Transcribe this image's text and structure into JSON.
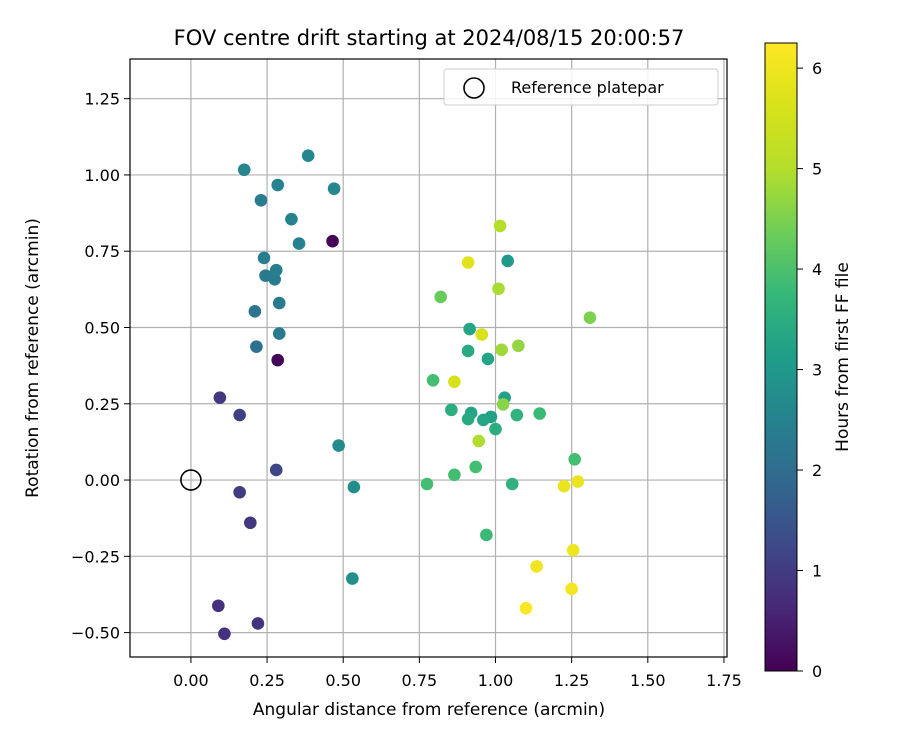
{
  "chart_data": {
    "type": "scatter",
    "title": "FOV centre drift starting at 2024/08/15 20:00:57",
    "xlabel": "Angular distance from reference (arcmin)",
    "ylabel": "Rotation from reference (arcmin)",
    "colorbar_label": "Hours from first FF file",
    "xlim": [
      -0.2,
      1.76
    ],
    "ylim": [
      -0.58,
      1.38
    ],
    "clim": [
      0,
      6.25
    ],
    "colormap": "viridis",
    "xticks": [
      "0.00",
      "0.25",
      "0.50",
      "0.75",
      "1.00",
      "1.25",
      "1.50",
      "1.75"
    ],
    "yticks": [
      "−0.50",
      "−0.25",
      "0.00",
      "0.25",
      "0.50",
      "0.75",
      "1.00",
      "1.25"
    ],
    "cticks": [
      "0",
      "1",
      "2",
      "3",
      "4",
      "5",
      "6"
    ],
    "grid": true,
    "legend": {
      "placement": "top-right",
      "entries": [
        "Reference platepar"
      ]
    },
    "reference_point": {
      "x": 0.0,
      "y": 0.0
    },
    "points": [
      {
        "x": 0.465,
        "y": 0.783,
        "c": 0.05
      },
      {
        "x": 0.285,
        "y": 0.393,
        "c": 0.1
      },
      {
        "x": 0.11,
        "y": -0.504,
        "c": 0.8
      },
      {
        "x": 0.09,
        "y": -0.412,
        "c": 0.8
      },
      {
        "x": 0.22,
        "y": -0.47,
        "c": 0.85
      },
      {
        "x": 0.195,
        "y": -0.14,
        "c": 0.9
      },
      {
        "x": 0.16,
        "y": -0.04,
        "c": 1.0
      },
      {
        "x": 0.095,
        "y": 0.27,
        "c": 0.95
      },
      {
        "x": 0.16,
        "y": 0.213,
        "c": 1.1
      },
      {
        "x": 0.28,
        "y": 0.033,
        "c": 1.2
      },
      {
        "x": 0.215,
        "y": 0.437,
        "c": 2.1
      },
      {
        "x": 0.21,
        "y": 0.553,
        "c": 2.2
      },
      {
        "x": 0.29,
        "y": 0.48,
        "c": 2.3
      },
      {
        "x": 0.29,
        "y": 0.58,
        "c": 2.3
      },
      {
        "x": 0.245,
        "y": 0.67,
        "c": 2.3
      },
      {
        "x": 0.275,
        "y": 0.658,
        "c": 2.35
      },
      {
        "x": 0.28,
        "y": 0.688,
        "c": 2.4
      },
      {
        "x": 0.24,
        "y": 0.728,
        "c": 2.4
      },
      {
        "x": 0.355,
        "y": 0.775,
        "c": 2.5
      },
      {
        "x": 0.33,
        "y": 0.855,
        "c": 2.5
      },
      {
        "x": 0.23,
        "y": 0.917,
        "c": 2.4
      },
      {
        "x": 0.285,
        "y": 0.967,
        "c": 2.5
      },
      {
        "x": 0.175,
        "y": 1.017,
        "c": 2.6
      },
      {
        "x": 0.385,
        "y": 1.063,
        "c": 2.6
      },
      {
        "x": 0.47,
        "y": 0.955,
        "c": 2.6
      },
      {
        "x": 0.485,
        "y": 0.113,
        "c": 2.7
      },
      {
        "x": 0.535,
        "y": -0.023,
        "c": 2.8
      },
      {
        "x": 0.53,
        "y": -0.323,
        "c": 2.8
      },
      {
        "x": 1.04,
        "y": 0.718,
        "c": 3.0
      },
      {
        "x": 0.975,
        "y": 0.397,
        "c": 3.3
      },
      {
        "x": 0.91,
        "y": 0.423,
        "c": 3.4
      },
      {
        "x": 0.915,
        "y": 0.495,
        "c": 3.3
      },
      {
        "x": 1.03,
        "y": 0.27,
        "c": 3.2
      },
      {
        "x": 0.985,
        "y": 0.207,
        "c": 3.2
      },
      {
        "x": 0.96,
        "y": 0.197,
        "c": 3.3
      },
      {
        "x": 0.92,
        "y": 0.22,
        "c": 3.3
      },
      {
        "x": 0.91,
        "y": 0.2,
        "c": 3.4
      },
      {
        "x": 0.855,
        "y": 0.23,
        "c": 3.5
      },
      {
        "x": 1.0,
        "y": 0.167,
        "c": 3.5
      },
      {
        "x": 1.07,
        "y": 0.213,
        "c": 3.6
      },
      {
        "x": 1.055,
        "y": -0.013,
        "c": 3.6
      },
      {
        "x": 0.97,
        "y": -0.18,
        "c": 3.8
      },
      {
        "x": 0.935,
        "y": 0.043,
        "c": 3.9
      },
      {
        "x": 0.865,
        "y": 0.017,
        "c": 3.9
      },
      {
        "x": 0.775,
        "y": -0.013,
        "c": 3.9
      },
      {
        "x": 1.145,
        "y": 0.218,
        "c": 3.8
      },
      {
        "x": 1.26,
        "y": 0.068,
        "c": 3.9
      },
      {
        "x": 0.795,
        "y": 0.327,
        "c": 3.9
      },
      {
        "x": 0.82,
        "y": 0.6,
        "c": 4.3
      },
      {
        "x": 1.025,
        "y": 0.248,
        "c": 4.6
      },
      {
        "x": 1.31,
        "y": 0.532,
        "c": 4.5
      },
      {
        "x": 1.075,
        "y": 0.44,
        "c": 4.7
      },
      {
        "x": 1.02,
        "y": 0.427,
        "c": 4.8
      },
      {
        "x": 1.01,
        "y": 0.627,
        "c": 4.9
      },
      {
        "x": 1.015,
        "y": 0.833,
        "c": 5.0
      },
      {
        "x": 0.945,
        "y": 0.128,
        "c": 4.95
      },
      {
        "x": 0.955,
        "y": 0.477,
        "c": 5.65
      },
      {
        "x": 0.865,
        "y": 0.322,
        "c": 5.6
      },
      {
        "x": 0.91,
        "y": 0.713,
        "c": 5.8
      },
      {
        "x": 1.225,
        "y": -0.02,
        "c": 5.9
      },
      {
        "x": 1.27,
        "y": -0.005,
        "c": 5.95
      },
      {
        "x": 1.255,
        "y": -0.23,
        "c": 6.0
      },
      {
        "x": 1.135,
        "y": -0.283,
        "c": 6.05
      },
      {
        "x": 1.25,
        "y": -0.357,
        "c": 6.1
      },
      {
        "x": 1.1,
        "y": -0.42,
        "c": 6.2
      }
    ]
  }
}
